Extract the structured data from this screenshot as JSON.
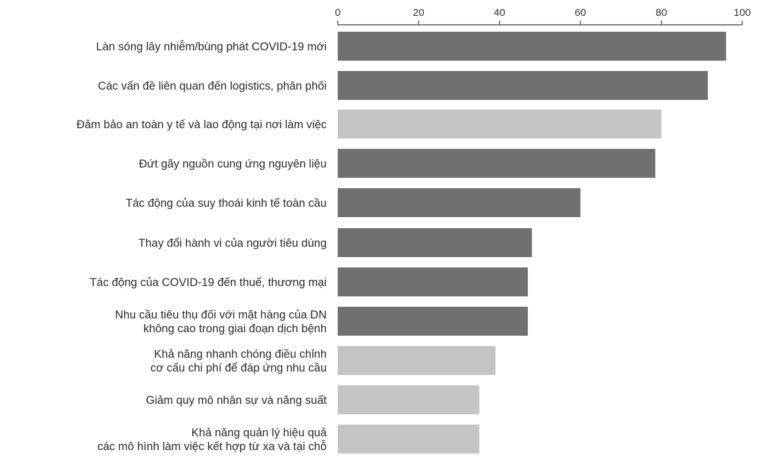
{
  "chart_data": {
    "type": "bar",
    "orientation": "horizontal",
    "categories": [
      [
        "Làn sóng lây nhiễm/bùng phát COVID-19 mới"
      ],
      [
        "Các vấn đề liên quan đến logistics, phân phối"
      ],
      [
        "Đảm bảo an toàn y tế và lao động tại nơi làm việc"
      ],
      [
        "Đứt gãy nguồn cung ứng nguyên liệu"
      ],
      [
        "Tác động của suy thoái kinh tế toàn cầu"
      ],
      [
        "Thay đổi hành vi của người tiêu dùng"
      ],
      [
        "Tác động của COVID-19 đến thuế, thương mại"
      ],
      [
        "Nhu cầu tiêu thụ đối với mặt hàng của DN",
        "không cao trong giai đoạn dịch bệnh"
      ],
      [
        "Khả năng nhanh chóng điều chỉnh",
        "cơ cấu chi phí để đáp ứng nhu cầu"
      ],
      [
        "Giảm quy mô nhân sự và năng suất"
      ],
      [
        "Khả năng quản lý hiệu quả",
        "các mô hình làm việc kết hợp từ xa và tại chỗ"
      ]
    ],
    "values": [
      96,
      91.5,
      80,
      78.5,
      60,
      48,
      47,
      47,
      39,
      35,
      35
    ],
    "bar_colors": [
      "#707070",
      "#707070",
      "#c4c4c6",
      "#707070",
      "#707070",
      "#707070",
      "#707070",
      "#707070",
      "#c4c4c6",
      "#c4c4c6",
      "#c4c4c6"
    ],
    "xlim": [
      0,
      100
    ],
    "xticks": [
      0,
      20,
      40,
      60,
      80,
      100
    ],
    "axis_position": "top",
    "grid": false,
    "title": "",
    "xlabel": "",
    "ylabel": ""
  }
}
